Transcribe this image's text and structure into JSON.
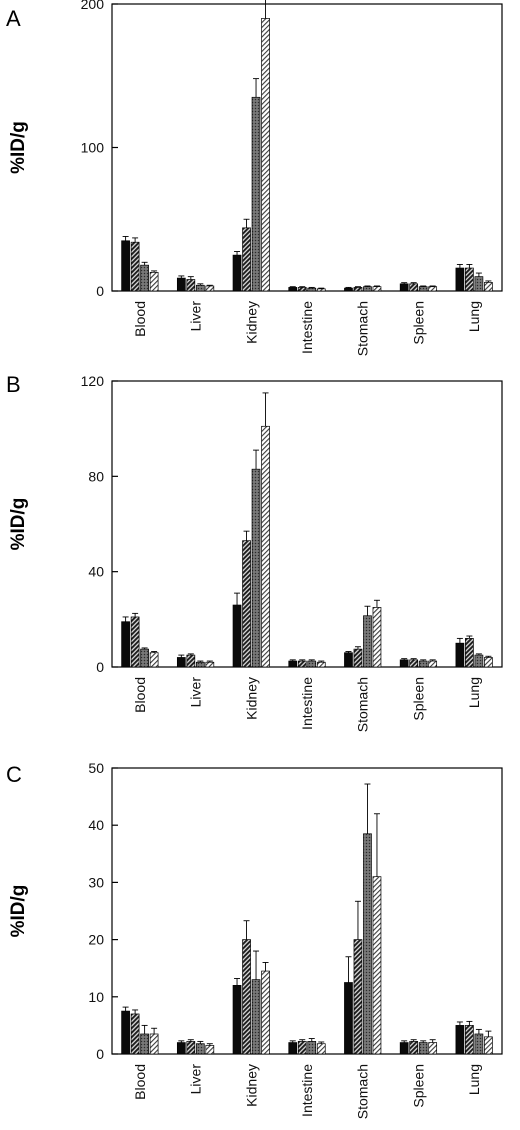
{
  "legend_styles": [
    "solid black",
    "dense diagonal hatch",
    "dark stipple",
    "light diagonal hatch"
  ],
  "colors": {
    "solid": "#0a0a0a",
    "hatch_dark": "#1e1e1e",
    "stipple_bg": "#6c6c6c",
    "hatch_light": "#ffffff"
  },
  "chart_data": [
    {
      "type": "bar",
      "panel_label": "A",
      "ylabel": "%ID/g",
      "ylim": [
        0,
        200
      ],
      "yticks": [
        0,
        100,
        200
      ],
      "categories": [
        "Blood",
        "Liver",
        "Kidney",
        "Intestine",
        "Stomach",
        "Spleen",
        "Lung"
      ],
      "series": [
        {
          "values": [
            35,
            9,
            25,
            2.5,
            2,
            5,
            16
          ],
          "errors": [
            3,
            1.5,
            2.5,
            0.5,
            0.5,
            0.8,
            2.5
          ]
        },
        {
          "values": [
            34,
            8,
            44,
            2.5,
            2.5,
            5,
            16
          ],
          "errors": [
            3,
            2,
            6,
            0.5,
            0.5,
            0.8,
            2.5
          ]
        },
        {
          "values": [
            18,
            4,
            135,
            2,
            3,
            3,
            10
          ],
          "errors": [
            2,
            1,
            13,
            0.5,
            0.5,
            0.5,
            2.5
          ]
        },
        {
          "values": [
            13,
            3.5,
            190,
            1.5,
            3,
            3,
            6
          ],
          "errors": [
            1,
            0.5,
            20,
            0.5,
            0.5,
            0.5,
            1
          ]
        }
      ]
    },
    {
      "type": "bar",
      "panel_label": "B",
      "ylabel": "%ID/g",
      "ylim": [
        0,
        120
      ],
      "yticks": [
        0,
        40,
        80,
        120
      ],
      "categories": [
        "Blood",
        "Liver",
        "Kidney",
        "Intestine",
        "Stomach",
        "Spleen",
        "Lung"
      ],
      "series": [
        {
          "values": [
            19,
            4,
            26,
            2.5,
            6,
            3,
            10
          ],
          "errors": [
            2,
            1,
            5,
            0.5,
            0.5,
            0.5,
            2
          ]
        },
        {
          "values": [
            21,
            5,
            53,
            2.5,
            7.5,
            3,
            12
          ],
          "errors": [
            1.5,
            0.5,
            4,
            0.5,
            1,
            0.5,
            1
          ]
        },
        {
          "values": [
            7.5,
            2,
            83,
            2.5,
            21.5,
            2.5,
            5
          ],
          "errors": [
            0.5,
            0.5,
            8,
            0.5,
            4,
            0.5,
            0.5
          ]
        },
        {
          "values": [
            6,
            2,
            101,
            2,
            25,
            2.5,
            4
          ],
          "errors": [
            0.5,
            0.5,
            14,
            0.5,
            3,
            0.5,
            0.5
          ]
        }
      ]
    },
    {
      "type": "bar",
      "panel_label": "C",
      "ylabel": "%ID/g",
      "ylim": [
        0,
        50
      ],
      "yticks": [
        0,
        10,
        20,
        30,
        40,
        50
      ],
      "categories": [
        "Blood",
        "Liver",
        "Kidney",
        "Intestine",
        "Stomach",
        "Spleen",
        "Lung"
      ],
      "series": [
        {
          "values": [
            7.5,
            2,
            12,
            2,
            12.5,
            2,
            5
          ],
          "errors": [
            0.7,
            0.3,
            1.2,
            0.3,
            4.5,
            0.3,
            0.6
          ]
        },
        {
          "values": [
            7,
            2.2,
            20,
            2.2,
            20,
            2.2,
            5
          ],
          "errors": [
            0.7,
            0.3,
            3.3,
            0.3,
            6.7,
            0.3,
            0.7
          ]
        },
        {
          "values": [
            3.5,
            1.8,
            13,
            2.2,
            38.5,
            2,
            3.5
          ],
          "errors": [
            1.5,
            0.4,
            5,
            0.5,
            8.7,
            0.3,
            0.8
          ]
        },
        {
          "values": [
            3.5,
            1.5,
            14.5,
            1.8,
            31,
            2,
            3
          ],
          "errors": [
            1,
            0.3,
            1.5,
            0.3,
            11,
            0.5,
            1
          ]
        }
      ]
    }
  ]
}
